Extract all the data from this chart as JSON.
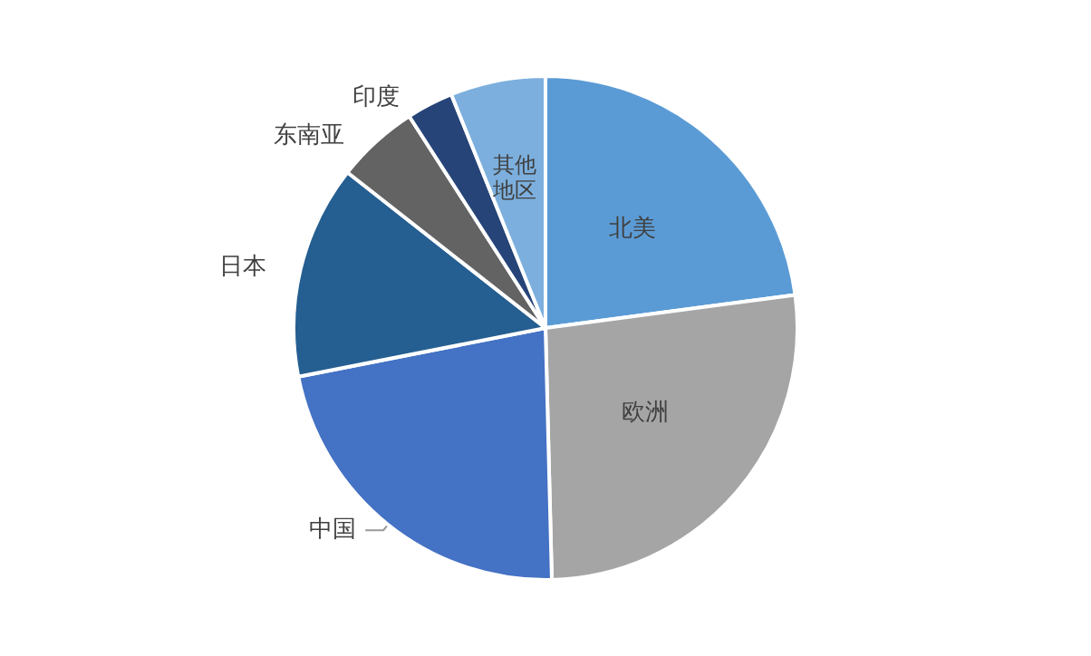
{
  "chart_data": {
    "type": "pie",
    "categories": [
      "北美",
      "欧洲",
      "中国",
      "日本",
      "东南亚",
      "印度",
      "其他地区"
    ],
    "values": [
      22.9,
      26.7,
      22.3,
      13.7,
      5.3,
      3.0,
      6.1
    ],
    "colors": [
      "#5b9bd5",
      "#a5a5a5",
      "#4472c4",
      "#255e91",
      "#636363",
      "#264478",
      "#7cafdd"
    ]
  }
}
